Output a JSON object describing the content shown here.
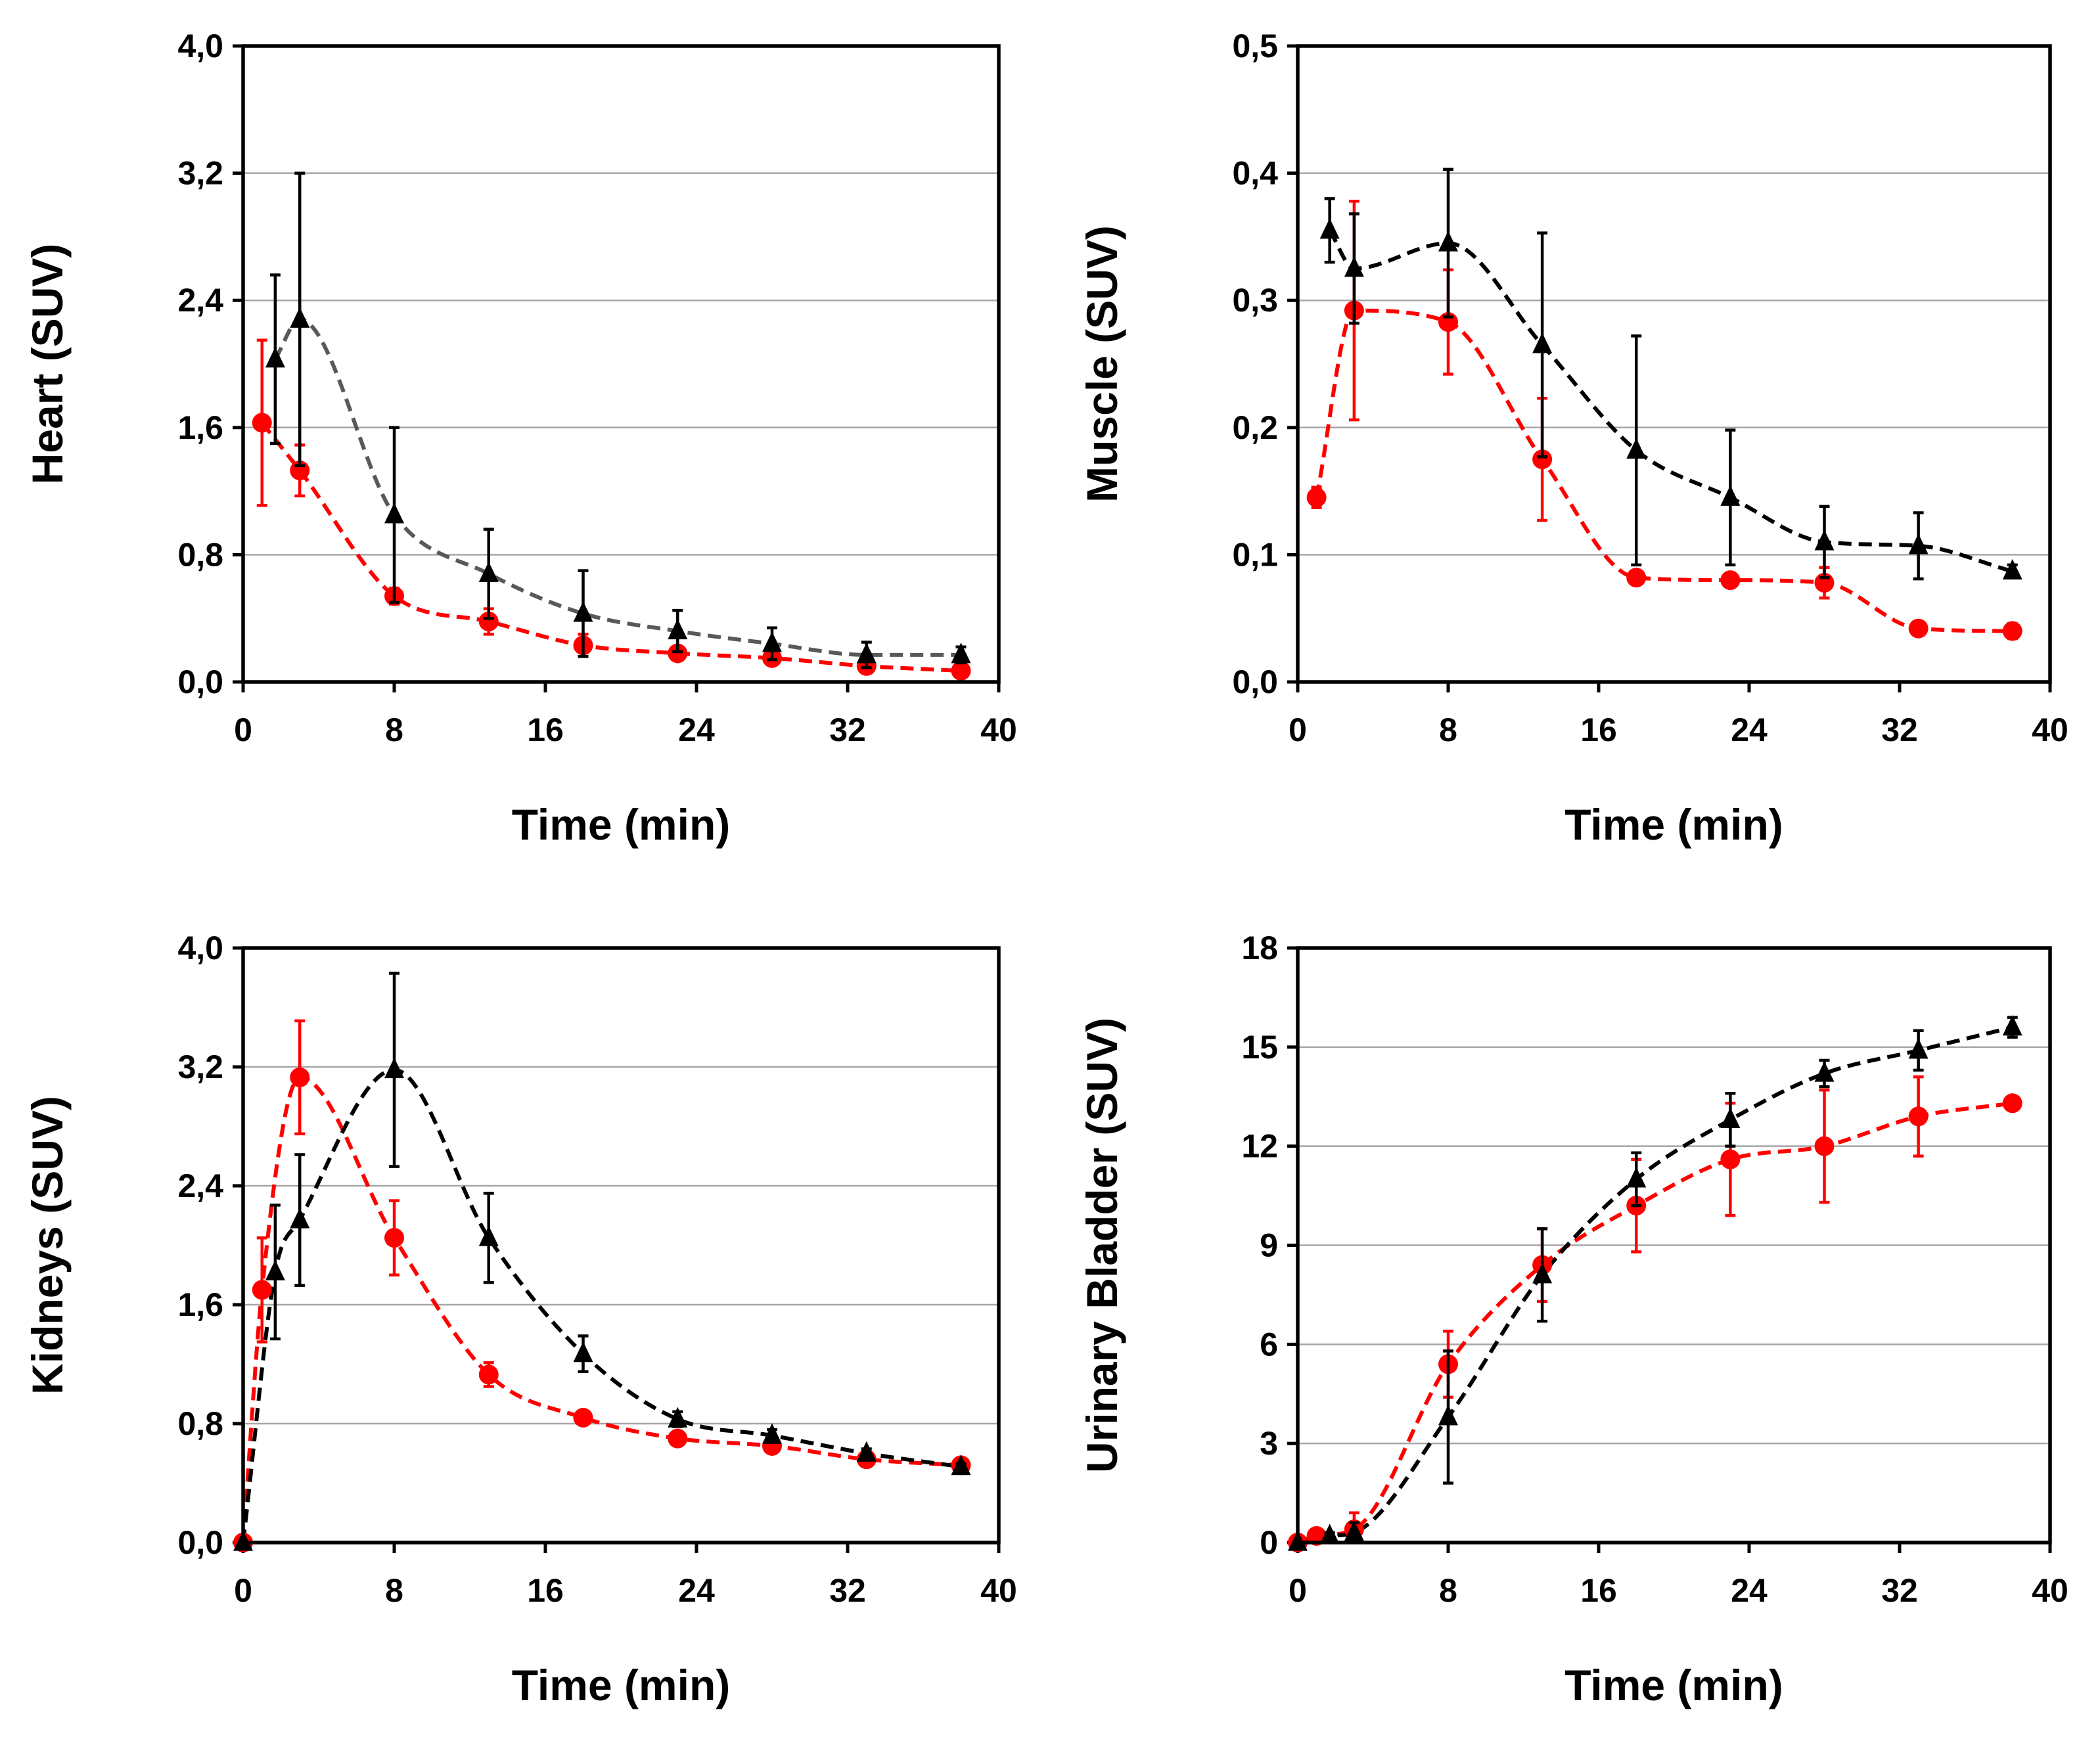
{
  "colors": {
    "circle_series": "#ff0000",
    "triangle_series": "#000000",
    "heart_triangle_curve": "#595959"
  },
  "chart_data": [
    {
      "type": "line",
      "panel": "top-left",
      "title": "",
      "xlabel": "Time (min)",
      "ylabel": "Heart (SUV)",
      "xlim": [
        0,
        40
      ],
      "ylim": [
        0,
        4.0
      ],
      "xticks": [
        "0",
        "8",
        "16",
        "24",
        "32",
        "40"
      ],
      "yticks": [
        "0,0",
        "0,8",
        "1,6",
        "2,4",
        "3,2",
        "4,0"
      ],
      "grid": true,
      "series": [
        {
          "name": "circle",
          "marker": "circle",
          "color": "#ff0000",
          "curve_color": "#ff0000",
          "x": [
            1,
            3,
            8,
            13,
            18,
            23,
            28,
            33,
            38
          ],
          "y": [
            1.63,
            1.33,
            0.54,
            0.38,
            0.23,
            0.18,
            0.15,
            0.1,
            0.07
          ],
          "err_up": [
            0.52,
            0.16,
            0.05,
            0.08,
            0.07,
            0.03,
            0.03,
            0.02,
            0.02
          ],
          "err_down": [
            0.52,
            0.16,
            0.05,
            0.08,
            0.07,
            0.03,
            0.03,
            0.02,
            0.02
          ]
        },
        {
          "name": "triangle",
          "marker": "triangle",
          "color": "#000000",
          "curve_color": "#595959",
          "x": [
            1.7,
            3,
            8,
            13,
            18,
            23,
            28,
            33,
            38
          ],
          "y": [
            2.03,
            2.28,
            1.05,
            0.68,
            0.43,
            0.32,
            0.24,
            0.17,
            0.17
          ],
          "err_up": [
            0.53,
            0.92,
            0.55,
            0.28,
            0.27,
            0.13,
            0.1,
            0.08,
            0.05
          ],
          "err_down": [
            0.53,
            0.92,
            0.55,
            0.28,
            0.27,
            0.13,
            0.1,
            0.08,
            0.05
          ]
        }
      ]
    },
    {
      "type": "line",
      "panel": "top-right",
      "title": "",
      "xlabel": "Time (min)",
      "ylabel": "Muscle (SUV)",
      "xlim": [
        0,
        40
      ],
      "ylim": [
        0,
        0.5
      ],
      "xticks": [
        "0",
        "8",
        "16",
        "24",
        "32",
        "40"
      ],
      "yticks": [
        "0,0",
        "0,1",
        "0,2",
        "0,3",
        "0,4",
        "0,5"
      ],
      "grid": true,
      "series": [
        {
          "name": "circle",
          "marker": "circle",
          "color": "#ff0000",
          "curve_color": "#ff0000",
          "x": [
            1,
            3,
            8,
            13,
            18,
            23,
            28,
            33,
            38
          ],
          "y": [
            0.145,
            0.292,
            0.283,
            0.175,
            0.082,
            0.08,
            0.078,
            0.042,
            0.04
          ],
          "err_up": [
            0.008,
            0.086,
            0.041,
            0.048,
            0.005,
            0.004,
            0.012,
            0.004,
            0.006
          ],
          "err_down": [
            0.008,
            0.086,
            0.041,
            0.048,
            0.005,
            0.004,
            0.012,
            0.004,
            0.006
          ]
        },
        {
          "name": "triangle",
          "marker": "triangle",
          "color": "#000000",
          "curve_color": "#000000",
          "x": [
            1.7,
            3,
            8,
            13,
            18,
            23,
            28,
            33,
            38
          ],
          "y": [
            0.355,
            0.325,
            0.345,
            0.265,
            0.182,
            0.145,
            0.11,
            0.107,
            0.087
          ],
          "err_up": [
            0.025,
            0.043,
            0.058,
            0.088,
            0.09,
            0.053,
            0.028,
            0.026,
            0.005
          ],
          "err_down": [
            0.025,
            0.043,
            0.058,
            0.088,
            0.09,
            0.053,
            0.028,
            0.026,
            0.005
          ]
        }
      ]
    },
    {
      "type": "line",
      "panel": "bottom-left",
      "title": "",
      "xlabel": "Time (min)",
      "ylabel": "Kidneys (SUV)",
      "xlim": [
        0,
        40
      ],
      "ylim": [
        0,
        4.0
      ],
      "xticks": [
        "0",
        "8",
        "16",
        "24",
        "32",
        "40"
      ],
      "yticks": [
        "0,0",
        "0,8",
        "1,6",
        "2,4",
        "3,2",
        "4,0"
      ],
      "grid": true,
      "series": [
        {
          "name": "circle",
          "marker": "circle",
          "color": "#ff0000",
          "curve_color": "#ff0000",
          "x": [
            0,
            1,
            3,
            8,
            13,
            18,
            23,
            28,
            33,
            38
          ],
          "y": [
            0.0,
            1.7,
            3.13,
            2.05,
            1.13,
            0.84,
            0.7,
            0.65,
            0.56,
            0.52
          ],
          "err_up": [
            0.0,
            0.35,
            0.38,
            0.25,
            0.08,
            0.03,
            0.03,
            0.03,
            0.02,
            0.02
          ],
          "err_down": [
            0.0,
            0.35,
            0.38,
            0.25,
            0.08,
            0.03,
            0.03,
            0.03,
            0.02,
            0.02
          ]
        },
        {
          "name": "triangle",
          "marker": "triangle",
          "color": "#000000",
          "curve_color": "#000000",
          "x": [
            0,
            1.7,
            3,
            8,
            13,
            18,
            23,
            28,
            33,
            38
          ],
          "y": [
            0.0,
            1.82,
            2.17,
            3.18,
            2.05,
            1.27,
            0.83,
            0.72,
            0.6,
            0.51
          ],
          "err_up": [
            0.0,
            0.45,
            0.44,
            0.65,
            0.3,
            0.12,
            0.05,
            0.04,
            0.03,
            0.02
          ],
          "err_down": [
            0.0,
            0.45,
            0.44,
            0.65,
            0.3,
            0.12,
            0.05,
            0.04,
            0.03,
            0.02
          ]
        }
      ]
    },
    {
      "type": "line",
      "panel": "bottom-right",
      "title": "",
      "xlabel": "Time (min)",
      "ylabel": "Urinary Bladder (SUV)",
      "xlim": [
        0,
        40
      ],
      "ylim": [
        0,
        18
      ],
      "xticks": [
        "0",
        "8",
        "16",
        "24",
        "32",
        "40"
      ],
      "yticks": [
        "0",
        "3",
        "6",
        "9",
        "12",
        "15",
        "18"
      ],
      "grid": true,
      "series": [
        {
          "name": "circle",
          "marker": "circle",
          "color": "#ff0000",
          "curve_color": "#ff0000",
          "x": [
            0,
            1,
            3,
            8,
            13,
            18,
            23,
            28,
            33,
            38
          ],
          "y": [
            0.0,
            0.2,
            0.4,
            5.4,
            8.4,
            10.2,
            11.6,
            12.0,
            12.9,
            13.3
          ],
          "err_up": [
            0.0,
            0.1,
            0.5,
            1.0,
            1.1,
            1.4,
            1.7,
            1.7,
            1.2,
            0.2
          ],
          "err_down": [
            0.0,
            0.1,
            0.5,
            1.0,
            1.1,
            1.4,
            1.7,
            1.7,
            1.2,
            0.2
          ]
        },
        {
          "name": "triangle",
          "marker": "triangle",
          "color": "#000000",
          "curve_color": "#000000",
          "x": [
            0,
            1.7,
            3,
            8,
            13,
            18,
            23,
            28,
            33,
            38
          ],
          "y": [
            0.0,
            0.2,
            0.3,
            3.8,
            8.1,
            11.0,
            12.8,
            14.2,
            14.9,
            15.6
          ],
          "err_up": [
            0.0,
            0.1,
            0.3,
            2.0,
            1.4,
            0.8,
            0.8,
            0.4,
            0.6,
            0.3
          ],
          "err_down": [
            0.0,
            0.1,
            0.3,
            2.0,
            1.4,
            0.8,
            0.8,
            0.4,
            0.6,
            0.3
          ]
        }
      ]
    }
  ]
}
